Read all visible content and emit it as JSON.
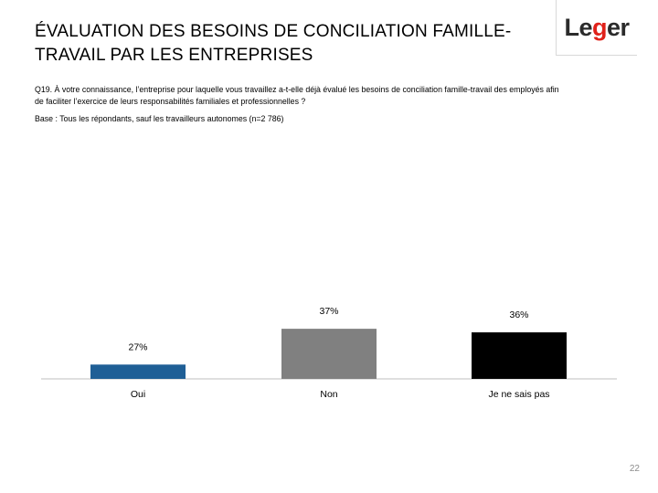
{
  "page": {
    "title": "ÉVALUATION DES BESOINS DE CONCILIATION FAMILLE-TRAVAIL PAR LES ENTREPRISES",
    "question": "Q19. À votre connaissance, l’entreprise pour laquelle vous travaillez a-t-elle déjà évalué les besoins de conciliation famille-travail des employés afin de faciliter l’exercice de leurs responsabilités familiales et professionnelles ?",
    "base": "Base : Tous les répondants, sauf les travailleurs autonomes (n=2 786)",
    "page_number": "22"
  },
  "logo": {
    "text_before": "Le",
    "text_accent": "g",
    "text_after": "er",
    "accent_color": "#e0211a"
  },
  "chart_data": {
    "type": "bar",
    "categories": [
      "Oui",
      "Non",
      "Je ne sais pas"
    ],
    "values": [
      27,
      37,
      36
    ],
    "data_labels": [
      "27%",
      "37%",
      "36%"
    ],
    "colors": [
      "#1f5f96",
      "#808080",
      "#000000"
    ],
    "title": "",
    "xlabel": "",
    "ylabel": "",
    "ylim": [
      0,
      100
    ],
    "grid": false,
    "legend": "none"
  }
}
